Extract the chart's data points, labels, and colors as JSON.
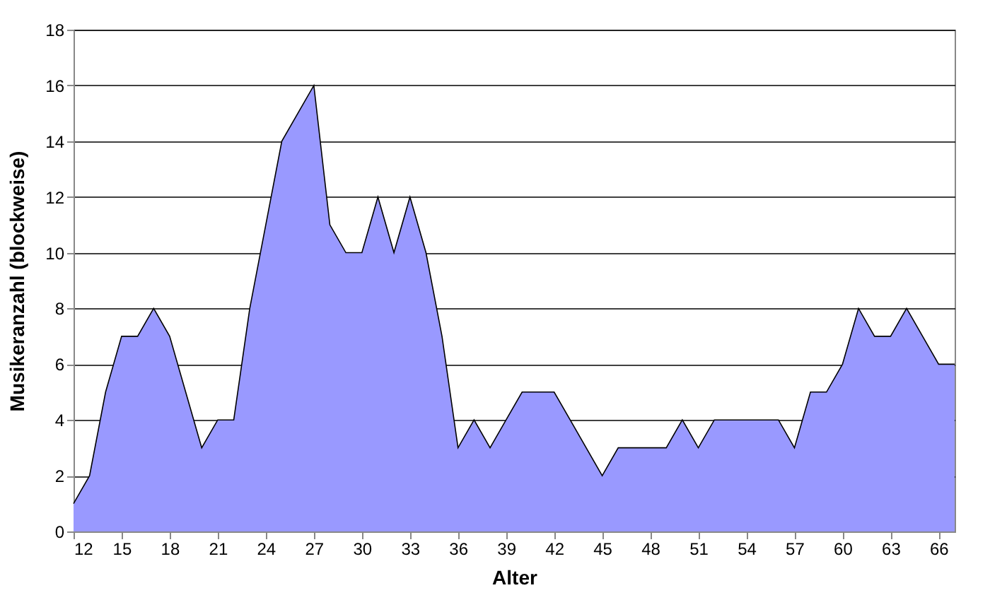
{
  "chart_data": {
    "type": "area",
    "xlabel": "Alter",
    "ylabel": "Musikeranzahl (blockweise)",
    "x": [
      12,
      13,
      14,
      15,
      16,
      17,
      18,
      19,
      20,
      21,
      22,
      23,
      24,
      25,
      26,
      27,
      28,
      29,
      30,
      31,
      32,
      33,
      34,
      35,
      36,
      37,
      38,
      39,
      40,
      41,
      42,
      43,
      44,
      45,
      46,
      47,
      48,
      49,
      50,
      51,
      52,
      53,
      54,
      55,
      56,
      57,
      58,
      59,
      60,
      61,
      62,
      63,
      64,
      65,
      66,
      67
    ],
    "series": [
      {
        "color": "#9999ff",
        "values": [
          1,
          2,
          5,
          7,
          7,
          8,
          7,
          5,
          3,
          4,
          4,
          8,
          11,
          14,
          15,
          16,
          11,
          10,
          10,
          12,
          10,
          12,
          10,
          7,
          3,
          4,
          3,
          4,
          5,
          5,
          5,
          4,
          3,
          2,
          3,
          3,
          3,
          3,
          4,
          3,
          4,
          4,
          4,
          4,
          4,
          3,
          5,
          5,
          6,
          8,
          7,
          7,
          8,
          7,
          6,
          6
        ]
      }
    ],
    "xlim": [
      12,
      67
    ],
    "xticks": [
      12,
      15,
      18,
      21,
      24,
      27,
      30,
      33,
      36,
      39,
      42,
      45,
      48,
      51,
      54,
      57,
      60,
      63,
      66
    ],
    "ylim": [
      0,
      18
    ],
    "yticks": [
      0,
      2,
      4,
      6,
      8,
      10,
      12,
      14,
      16,
      18
    ],
    "grid": "y"
  }
}
